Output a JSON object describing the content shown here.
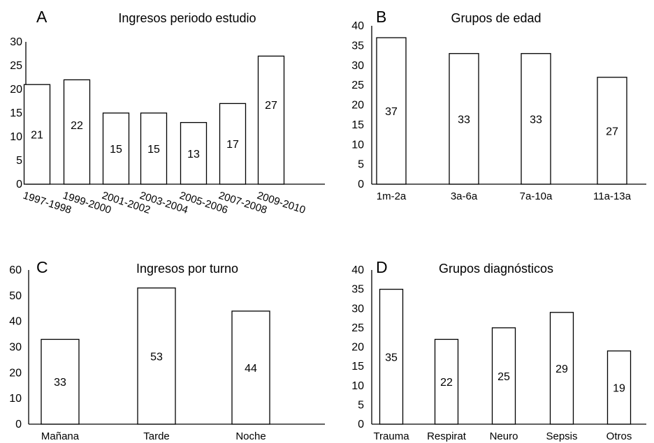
{
  "chart_data": [
    {
      "type": "bar",
      "panel": "A",
      "title": "Ingresos periodo estudio",
      "categories": [
        "1997-1998",
        "1999-2000",
        "2001-2002",
        "2003-2004",
        "2005-2006",
        "2007-2008",
        "2009-2010"
      ],
      "values": [
        21,
        22,
        15,
        15,
        13,
        17,
        27
      ],
      "data_labels": [
        "21",
        "22",
        "15",
        "15",
        "13",
        "17",
        "27"
      ],
      "yticks": [
        "0",
        "5",
        "10",
        "15",
        "20",
        "25",
        "30"
      ],
      "ylim": [
        0,
        30
      ],
      "xlabel": "",
      "ylabel": "",
      "grid": false
    },
    {
      "type": "bar",
      "panel": "B",
      "title": "Grupos de edad",
      "categories": [
        "1m-2a",
        "3a-6a",
        "7a-10a",
        "11a-13a"
      ],
      "values": [
        37,
        33,
        33,
        27
      ],
      "data_labels": [
        "37",
        "33",
        "33",
        "27"
      ],
      "yticks": [
        "0",
        "5",
        "10",
        "15",
        "20",
        "25",
        "30",
        "35",
        "40"
      ],
      "ylim": [
        0,
        40
      ],
      "xlabel": "",
      "ylabel": "",
      "grid": false
    },
    {
      "type": "bar",
      "panel": "C",
      "title": "Ingresos por turno",
      "categories": [
        "Mañana",
        "Tarde",
        "Noche"
      ],
      "values": [
        33,
        53,
        44
      ],
      "data_labels": [
        "33",
        "53",
        "44"
      ],
      "yticks": [
        "0",
        "10",
        "20",
        "30",
        "40",
        "50",
        "60"
      ],
      "ylim": [
        0,
        60
      ],
      "xlabel": "",
      "ylabel": "",
      "grid": false
    },
    {
      "type": "bar",
      "panel": "D",
      "title": "Grupos diagnósticos",
      "categories": [
        "Trauma",
        "Respirat",
        "Neuro",
        "Sepsis",
        "Otros"
      ],
      "values": [
        35,
        22,
        25,
        29,
        19
      ],
      "data_labels": [
        "35",
        "22",
        "25",
        "29",
        "19"
      ],
      "yticks": [
        "0",
        "5",
        "10",
        "15",
        "20",
        "25",
        "30",
        "35",
        "40"
      ],
      "ylim": [
        0,
        40
      ],
      "xlabel": "",
      "ylabel": "",
      "grid": false
    }
  ]
}
